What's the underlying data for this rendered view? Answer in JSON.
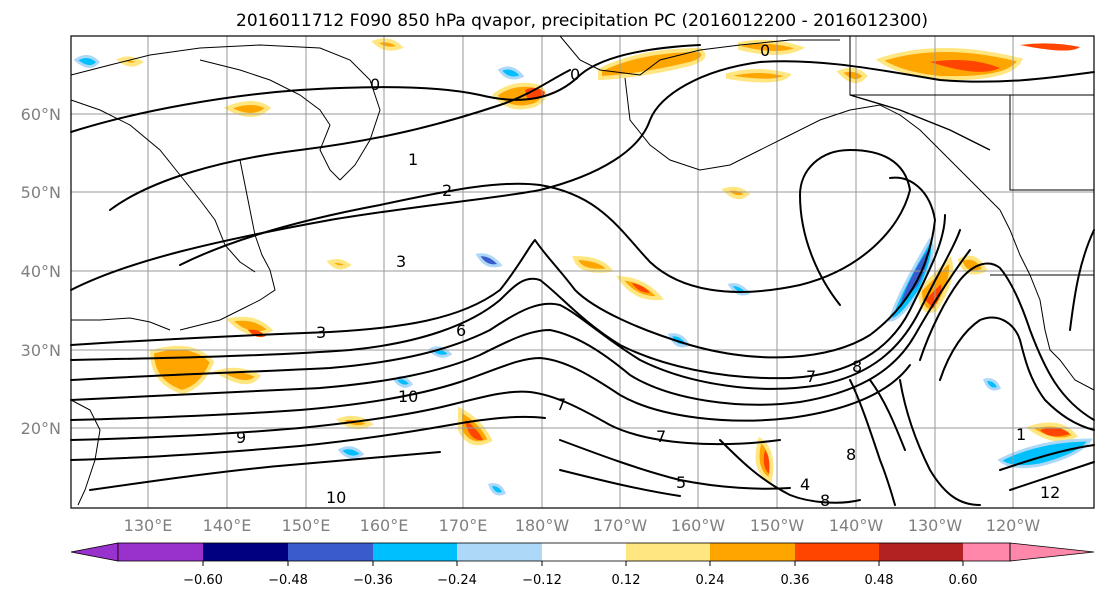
{
  "title": "2016011712 F090 850 hPa qvapor, precipitation PC (2016012200 - 2016012300)",
  "map": {
    "lon_labels": [
      "130°E",
      "140°E",
      "150°E",
      "160°E",
      "170°E",
      "180°W",
      "170°W",
      "160°W",
      "150°W",
      "140°W",
      "130°W",
      "120°W"
    ],
    "lat_labels": [
      "60°N",
      "50°N",
      "40°N",
      "30°N",
      "20°N"
    ],
    "contour_labels": [
      "0",
      "0",
      "0",
      "1",
      "2",
      "3",
      "6",
      "10",
      "9",
      "8",
      "10",
      "1",
      "7",
      "8",
      "3",
      "4",
      "7",
      "12",
      "8",
      "7",
      "5"
    ]
  },
  "colorbar": {
    "tick_labels": [
      "−0.60",
      "−0.48",
      "−0.36",
      "−0.24",
      "−0.12",
      "0.12",
      "0.24",
      "0.36",
      "0.48",
      "0.60"
    ],
    "colors": [
      "#9932CC",
      "#000080",
      "#3A5BCC",
      "#00BFFF",
      "#ADD8F7",
      "#FFFFFF",
      "#FFE680",
      "#FFA500",
      "#FF4500",
      "#B22222",
      "#FF88AA"
    ]
  }
}
